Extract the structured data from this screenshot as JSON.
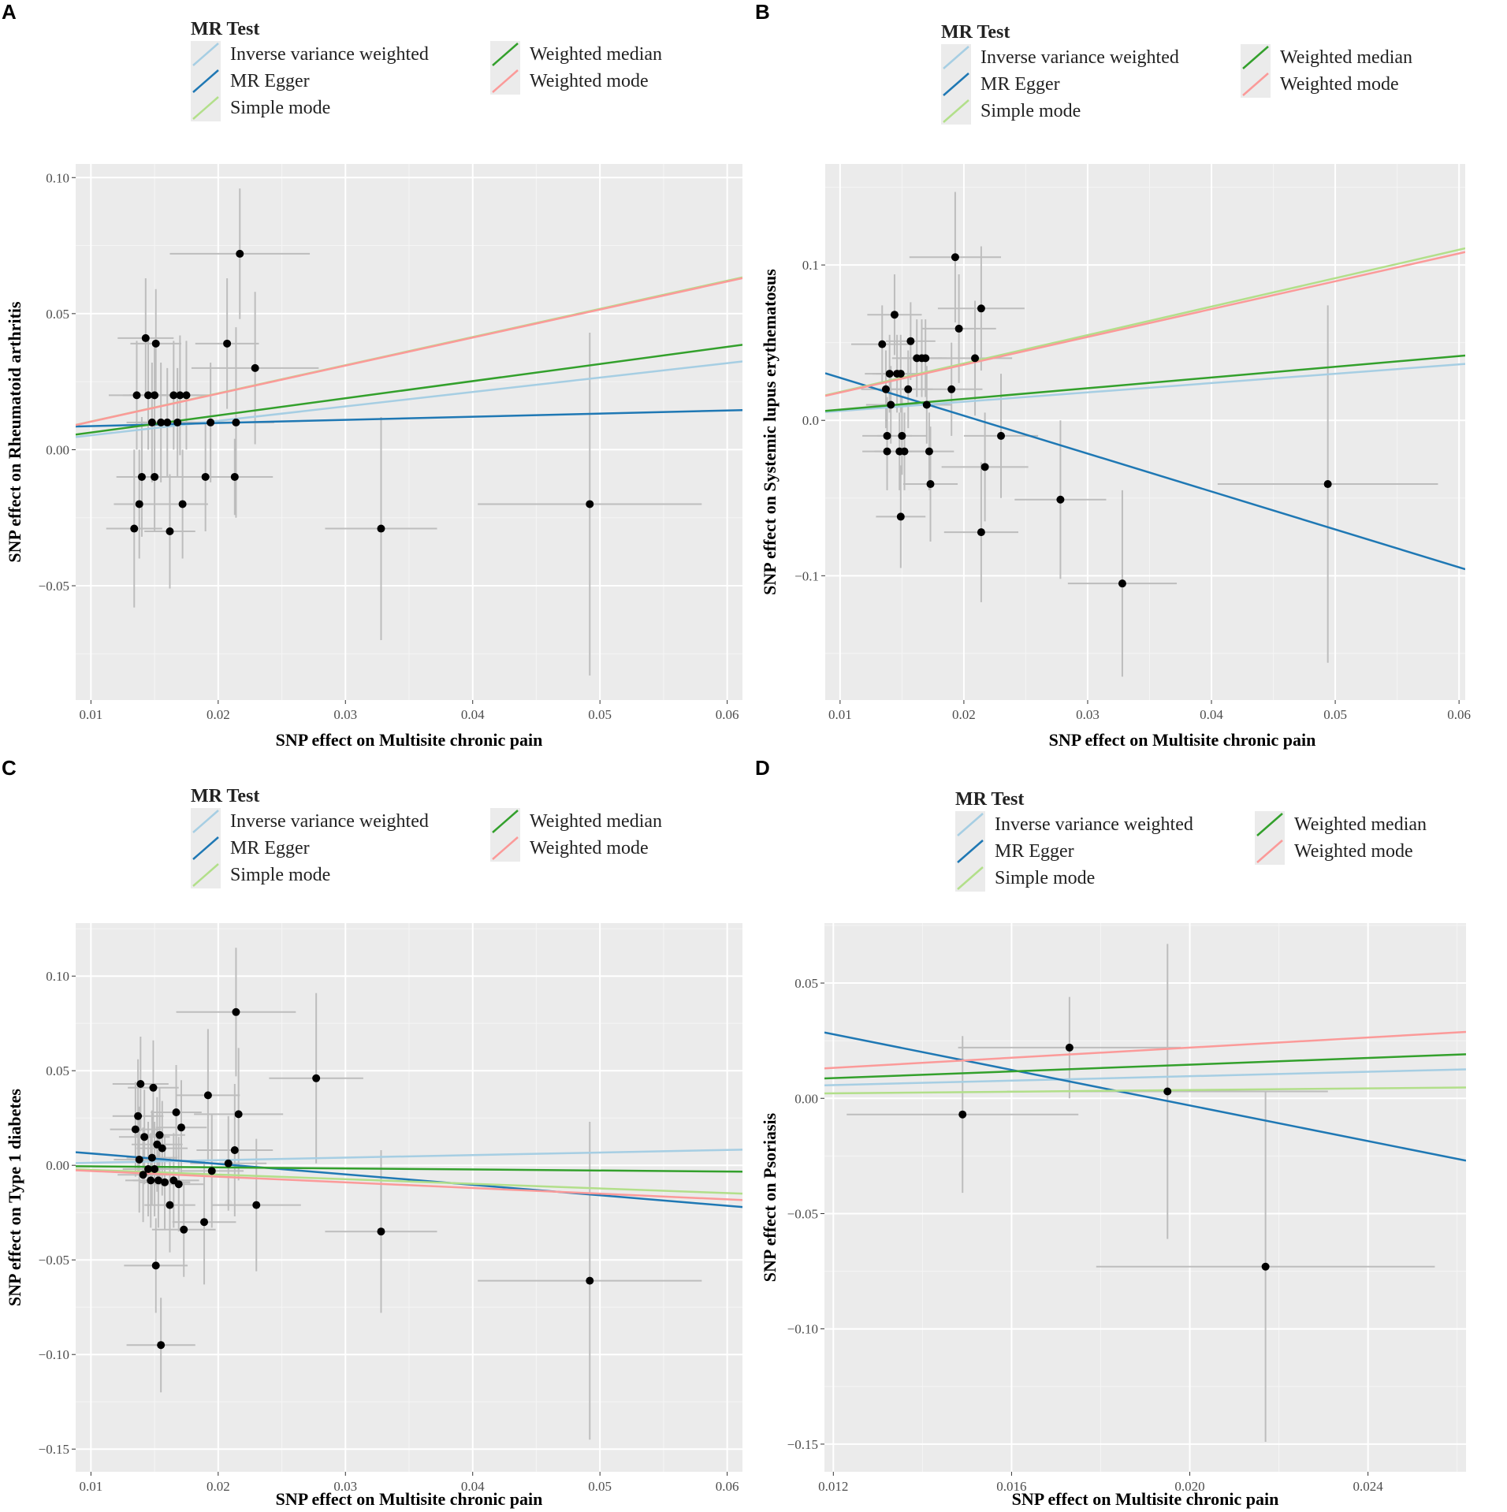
{
  "legend": {
    "title": "MR Test",
    "methods": [
      {
        "label": "Inverse variance weighted",
        "color": "#a6cee3"
      },
      {
        "label": "MR Egger",
        "color": "#1f78b4"
      },
      {
        "label": "Simple mode",
        "color": "#b2df8a"
      },
      {
        "label": "Weighted median",
        "color": "#33a02c"
      },
      {
        "label": "Weighted mode",
        "color": "#fb9a99"
      }
    ]
  },
  "chart_data": [
    {
      "panel": "A",
      "type": "scatter",
      "xlabel": "SNP effect on Multisite chronic pain",
      "ylabel": "SNP effect on Rheumatoid arthritis",
      "xlim": [
        0.0088,
        0.0612
      ],
      "ylim": [
        -0.092,
        0.105
      ],
      "xticks": [
        0.01,
        0.02,
        0.03,
        0.04,
        0.05,
        0.06
      ],
      "xtick_labels": [
        "0.01",
        "0.02",
        "0.03",
        "0.04",
        "0.05",
        "0.06"
      ],
      "yticks": [
        -0.05,
        0.0,
        0.05,
        0.1
      ],
      "ytick_labels": [
        "−0.05",
        "0.00",
        "0.05",
        "0.10"
      ],
      "points": [
        {
          "x": 0.0136,
          "y": 0.02,
          "xe": 0.0022,
          "ye": 0.02
        },
        {
          "x": 0.014,
          "y": -0.01,
          "xe": 0.002,
          "ye": 0.022
        },
        {
          "x": 0.0138,
          "y": -0.02,
          "xe": 0.002,
          "ye": 0.02
        },
        {
          "x": 0.0134,
          "y": -0.029,
          "xe": 0.0022,
          "ye": 0.029
        },
        {
          "x": 0.0143,
          "y": 0.041,
          "xe": 0.0022,
          "ye": 0.022
        },
        {
          "x": 0.0145,
          "y": 0.02,
          "xe": 0.002,
          "ye": 0.02
        },
        {
          "x": 0.0148,
          "y": 0.01,
          "xe": 0.002,
          "ye": 0.022
        },
        {
          "x": 0.015,
          "y": -0.01,
          "xe": 0.002,
          "ye": 0.02
        },
        {
          "x": 0.0151,
          "y": 0.039,
          "xe": 0.002,
          "ye": 0.02
        },
        {
          "x": 0.015,
          "y": 0.02,
          "xe": 0.002,
          "ye": 0.02
        },
        {
          "x": 0.0155,
          "y": 0.01,
          "xe": 0.002,
          "ye": 0.022
        },
        {
          "x": 0.016,
          "y": 0.01,
          "xe": 0.002,
          "ye": 0.02
        },
        {
          "x": 0.0162,
          "y": -0.03,
          "xe": 0.002,
          "ye": 0.021
        },
        {
          "x": 0.0165,
          "y": 0.02,
          "xe": 0.002,
          "ye": 0.02
        },
        {
          "x": 0.0168,
          "y": 0.01,
          "xe": 0.002,
          "ye": 0.02
        },
        {
          "x": 0.017,
          "y": 0.02,
          "xe": 0.0022,
          "ye": 0.022
        },
        {
          "x": 0.0172,
          "y": -0.02,
          "xe": 0.002,
          "ye": 0.02
        },
        {
          "x": 0.0175,
          "y": 0.02,
          "xe": 0.002,
          "ye": 0.02
        },
        {
          "x": 0.019,
          "y": -0.01,
          "xe": 0.0025,
          "ye": 0.02
        },
        {
          "x": 0.0194,
          "y": 0.01,
          "xe": 0.0025,
          "ye": 0.022
        },
        {
          "x": 0.0207,
          "y": 0.039,
          "xe": 0.0025,
          "ye": 0.024
        },
        {
          "x": 0.0213,
          "y": -0.01,
          "xe": 0.003,
          "ye": 0.014
        },
        {
          "x": 0.0214,
          "y": 0.01,
          "xe": 0.003,
          "ye": 0.035
        },
        {
          "x": 0.0217,
          "y": 0.072,
          "xe": 0.0055,
          "ye": 0.024
        },
        {
          "x": 0.0229,
          "y": 0.03,
          "xe": 0.005,
          "ye": 0.028
        },
        {
          "x": 0.0328,
          "y": -0.029,
          "xe": 0.0044,
          "ye": 0.041
        },
        {
          "x": 0.0492,
          "y": -0.02,
          "xe": 0.0088,
          "ye": 0.063
        }
      ],
      "lines": [
        {
          "method": "Inverse variance weighted",
          "intercept": 0.0,
          "slope": 0.53
        },
        {
          "method": "MR Egger",
          "intercept": 0.0075,
          "slope": 0.115
        },
        {
          "method": "Simple mode",
          "intercept": 0.0,
          "slope": 1.035
        },
        {
          "method": "Weighted median",
          "intercept": 0.0,
          "slope": 0.63
        },
        {
          "method": "Weighted mode",
          "intercept": 0.0,
          "slope": 1.03
        }
      ]
    },
    {
      "panel": "B",
      "type": "scatter",
      "xlabel": "SNP effect on Multisite chronic pain",
      "ylabel": "SNP effect on Systemic lupus erythematosus",
      "xlim": [
        0.0088,
        0.0605
      ],
      "ylim": [
        -0.18,
        0.165
      ],
      "xticks": [
        0.01,
        0.02,
        0.03,
        0.04,
        0.05,
        0.06
      ],
      "xtick_labels": [
        "0.01",
        "0.02",
        "0.03",
        "0.04",
        "0.05",
        "0.06"
      ],
      "yticks": [
        -0.1,
        0.0,
        0.1
      ],
      "ytick_labels": [
        "−0.1",
        "0.0",
        "0.1"
      ],
      "points": [
        {
          "x": 0.0134,
          "y": 0.049,
          "xe": 0.0025,
          "ye": 0.025
        },
        {
          "x": 0.0137,
          "y": 0.02,
          "xe": 0.002,
          "ye": 0.025
        },
        {
          "x": 0.0138,
          "y": -0.01,
          "xe": 0.002,
          "ye": 0.025
        },
        {
          "x": 0.0138,
          "y": -0.02,
          "xe": 0.002,
          "ye": 0.025
        },
        {
          "x": 0.014,
          "y": 0.03,
          "xe": 0.002,
          "ye": 0.025
        },
        {
          "x": 0.0141,
          "y": 0.01,
          "xe": 0.002,
          "ye": 0.025
        },
        {
          "x": 0.0144,
          "y": 0.068,
          "xe": 0.0022,
          "ye": 0.026
        },
        {
          "x": 0.0146,
          "y": 0.03,
          "xe": 0.002,
          "ye": 0.025
        },
        {
          "x": 0.0148,
          "y": -0.02,
          "xe": 0.002,
          "ye": 0.025
        },
        {
          "x": 0.0149,
          "y": 0.03,
          "xe": 0.002,
          "ye": 0.025
        },
        {
          "x": 0.0149,
          "y": -0.062,
          "xe": 0.002,
          "ye": 0.033
        },
        {
          "x": 0.015,
          "y": -0.01,
          "xe": 0.002,
          "ye": 0.025
        },
        {
          "x": 0.0152,
          "y": -0.02,
          "xe": 0.002,
          "ye": 0.025
        },
        {
          "x": 0.0155,
          "y": 0.02,
          "xe": 0.002,
          "ye": 0.025
        },
        {
          "x": 0.0157,
          "y": 0.051,
          "xe": 0.002,
          "ye": 0.025
        },
        {
          "x": 0.0162,
          "y": 0.04,
          "xe": 0.002,
          "ye": 0.025
        },
        {
          "x": 0.0166,
          "y": 0.04,
          "xe": 0.002,
          "ye": 0.025
        },
        {
          "x": 0.0169,
          "y": 0.04,
          "xe": 0.002,
          "ye": 0.025
        },
        {
          "x": 0.017,
          "y": 0.01,
          "xe": 0.002,
          "ye": 0.025
        },
        {
          "x": 0.0172,
          "y": -0.02,
          "xe": 0.002,
          "ye": 0.025
        },
        {
          "x": 0.0173,
          "y": -0.041,
          "xe": 0.0022,
          "ye": 0.037
        },
        {
          "x": 0.019,
          "y": 0.02,
          "xe": 0.0025,
          "ye": 0.03
        },
        {
          "x": 0.0193,
          "y": 0.105,
          "xe": 0.0037,
          "ye": 0.042
        },
        {
          "x": 0.0196,
          "y": 0.059,
          "xe": 0.003,
          "ye": 0.035
        },
        {
          "x": 0.0209,
          "y": 0.04,
          "xe": 0.003,
          "ye": 0.037
        },
        {
          "x": 0.0214,
          "y": 0.072,
          "xe": 0.0035,
          "ye": 0.04
        },
        {
          "x": 0.0214,
          "y": -0.072,
          "xe": 0.003,
          "ye": 0.045
        },
        {
          "x": 0.0217,
          "y": -0.03,
          "xe": 0.0035,
          "ye": 0.035
        },
        {
          "x": 0.023,
          "y": -0.01,
          "xe": 0.003,
          "ye": 0.04
        },
        {
          "x": 0.0278,
          "y": -0.051,
          "xe": 0.0037,
          "ye": 0.051
        },
        {
          "x": 0.0328,
          "y": -0.105,
          "xe": 0.0044,
          "ye": 0.06
        },
        {
          "x": 0.0494,
          "y": -0.041,
          "xe": 0.0089,
          "ye": 0.115
        }
      ],
      "lines": [
        {
          "method": "Inverse variance weighted",
          "intercept": 0.0,
          "slope": 0.6
        },
        {
          "method": "MR Egger",
          "intercept": 0.0518,
          "slope": -2.44
        },
        {
          "method": "Simple mode",
          "intercept": 0.0,
          "slope": 1.83
        },
        {
          "method": "Weighted median",
          "intercept": 0.0,
          "slope": 0.69
        },
        {
          "method": "Weighted mode",
          "intercept": 0.0,
          "slope": 1.79
        }
      ]
    },
    {
      "panel": "C",
      "type": "scatter",
      "xlabel": "SNP effect on Multisite chronic pain",
      "ylabel": "SNP effect on Type 1 diabetes",
      "xlim": [
        0.0088,
        0.0612
      ],
      "ylim": [
        -0.162,
        0.128
      ],
      "xticks": [
        0.01,
        0.02,
        0.03,
        0.04,
        0.05,
        0.06
      ],
      "xtick_labels": [
        "0.01",
        "0.02",
        "0.03",
        "0.04",
        "0.05",
        "0.06"
      ],
      "yticks": [
        -0.15,
        -0.1,
        -0.05,
        0.0,
        0.05,
        0.1
      ],
      "ytick_labels": [
        "−0.15",
        "−0.10",
        "−0.05",
        "0.00",
        "0.05",
        "0.10"
      ],
      "points": [
        {
          "x": 0.0135,
          "y": 0.019,
          "xe": 0.002,
          "ye": 0.025
        },
        {
          "x": 0.0137,
          "y": 0.026,
          "xe": 0.002,
          "ye": 0.03
        },
        {
          "x": 0.0138,
          "y": 0.003,
          "xe": 0.002,
          "ye": 0.028
        },
        {
          "x": 0.0139,
          "y": 0.043,
          "xe": 0.0022,
          "ye": 0.025
        },
        {
          "x": 0.0141,
          "y": -0.005,
          "xe": 0.002,
          "ye": 0.025
        },
        {
          "x": 0.0142,
          "y": 0.015,
          "xe": 0.002,
          "ye": 0.025
        },
        {
          "x": 0.0145,
          "y": -0.002,
          "xe": 0.002,
          "ye": 0.025
        },
        {
          "x": 0.0147,
          "y": -0.008,
          "xe": 0.002,
          "ye": 0.025
        },
        {
          "x": 0.0148,
          "y": 0.004,
          "xe": 0.002,
          "ye": 0.025
        },
        {
          "x": 0.0149,
          "y": 0.041,
          "xe": 0.002,
          "ye": 0.025
        },
        {
          "x": 0.015,
          "y": -0.002,
          "xe": 0.002,
          "ye": 0.025
        },
        {
          "x": 0.0151,
          "y": -0.053,
          "xe": 0.0025,
          "ye": 0.025
        },
        {
          "x": 0.0152,
          "y": 0.011,
          "xe": 0.002,
          "ye": 0.025
        },
        {
          "x": 0.0153,
          "y": -0.008,
          "xe": 0.002,
          "ye": 0.025
        },
        {
          "x": 0.0154,
          "y": 0.016,
          "xe": 0.002,
          "ye": 0.025
        },
        {
          "x": 0.0155,
          "y": -0.095,
          "xe": 0.0027,
          "ye": 0.025
        },
        {
          "x": 0.0156,
          "y": 0.009,
          "xe": 0.002,
          "ye": 0.025
        },
        {
          "x": 0.0158,
          "y": -0.009,
          "xe": 0.002,
          "ye": 0.025
        },
        {
          "x": 0.0162,
          "y": -0.021,
          "xe": 0.002,
          "ye": 0.025
        },
        {
          "x": 0.0165,
          "y": -0.008,
          "xe": 0.002,
          "ye": 0.025
        },
        {
          "x": 0.0167,
          "y": 0.028,
          "xe": 0.002,
          "ye": 0.025
        },
        {
          "x": 0.0169,
          "y": -0.01,
          "xe": 0.002,
          "ye": 0.025
        },
        {
          "x": 0.0171,
          "y": 0.02,
          "xe": 0.002,
          "ye": 0.025
        },
        {
          "x": 0.0173,
          "y": -0.034,
          "xe": 0.0025,
          "ye": 0.025
        },
        {
          "x": 0.0189,
          "y": -0.03,
          "xe": 0.0025,
          "ye": 0.033
        },
        {
          "x": 0.0192,
          "y": 0.037,
          "xe": 0.0025,
          "ye": 0.035
        },
        {
          "x": 0.0195,
          "y": -0.003,
          "xe": 0.0025,
          "ye": 0.03
        },
        {
          "x": 0.0208,
          "y": 0.001,
          "xe": 0.003,
          "ye": 0.025
        },
        {
          "x": 0.0213,
          "y": 0.008,
          "xe": 0.003,
          "ye": 0.035
        },
        {
          "x": 0.0214,
          "y": 0.081,
          "xe": 0.0047,
          "ye": 0.034
        },
        {
          "x": 0.0216,
          "y": 0.027,
          "xe": 0.0035,
          "ye": 0.035
        },
        {
          "x": 0.023,
          "y": -0.021,
          "xe": 0.0035,
          "ye": 0.035
        },
        {
          "x": 0.0277,
          "y": 0.046,
          "xe": 0.0037,
          "ye": 0.045
        },
        {
          "x": 0.0328,
          "y": -0.035,
          "xe": 0.0044,
          "ye": 0.043
        },
        {
          "x": 0.0492,
          "y": -0.061,
          "xe": 0.0088,
          "ye": 0.084
        }
      ],
      "lines": [
        {
          "method": "Inverse variance weighted",
          "intercept": 0.0,
          "slope": 0.135
        },
        {
          "method": "MR Egger",
          "intercept": 0.0118,
          "slope": -0.553
        },
        {
          "method": "Simple mode",
          "intercept": 0.0,
          "slope": -0.245
        },
        {
          "method": "Weighted median",
          "intercept": 0.0,
          "slope": -0.055
        },
        {
          "method": "Weighted mode",
          "intercept": 0.0,
          "slope": -0.3
        }
      ]
    },
    {
      "panel": "D",
      "type": "scatter",
      "xlabel": "SNP effect on Multisite chronic pain",
      "ylabel": "SNP effect on Psoriasis",
      "xlim": [
        0.0118,
        0.0262
      ],
      "ylim": [
        -0.162,
        0.076
      ],
      "xticks": [
        0.012,
        0.016,
        0.02,
        0.024
      ],
      "xtick_labels": [
        "0.012",
        "0.016",
        "0.020",
        "0.024"
      ],
      "yticks": [
        -0.15,
        -0.1,
        -0.05,
        0.0,
        0.05
      ],
      "ytick_labels": [
        "−0.15",
        "−0.10",
        "−0.05",
        "0.00",
        "0.05"
      ],
      "points": [
        {
          "x": 0.0149,
          "y": -0.007,
          "xe": 0.0026,
          "ye": 0.034
        },
        {
          "x": 0.0173,
          "y": 0.022,
          "xe": 0.0025,
          "ye": 0.022
        },
        {
          "x": 0.0195,
          "y": 0.003,
          "xe": 0.0036,
          "ye": 0.064
        },
        {
          "x": 0.0217,
          "y": -0.073,
          "xe": 0.0038,
          "ye": 0.076
        }
      ],
      "lines": [
        {
          "method": "Inverse variance weighted",
          "intercept": 0.0,
          "slope": 0.48
        },
        {
          "method": "MR Egger",
          "intercept": 0.0741,
          "slope": -3.86
        },
        {
          "method": "Simple mode",
          "intercept": 0.0,
          "slope": 0.18
        },
        {
          "method": "Weighted median",
          "intercept": 0.0,
          "slope": 0.73
        },
        {
          "method": "Weighted mode",
          "intercept": 0.0,
          "slope": 1.1
        }
      ]
    }
  ]
}
